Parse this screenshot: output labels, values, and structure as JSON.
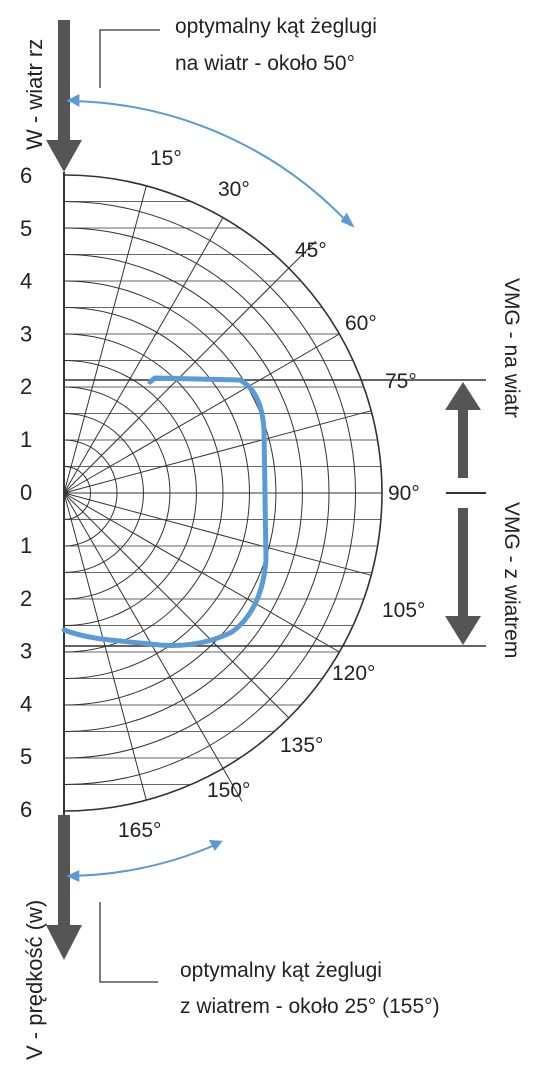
{
  "title_top": "W - wiatr rz",
  "title_bottom": "V - prędkość (w)",
  "axis_ticks_upper": [
    "6",
    "5",
    "4",
    "3",
    "2",
    "1",
    "0"
  ],
  "axis_ticks_lower": [
    "1",
    "2",
    "3",
    "4",
    "5",
    "6"
  ],
  "angle_labels": [
    "15°",
    "30°",
    "45°",
    "60°",
    "75°",
    "90°",
    "105°",
    "120°",
    "135°",
    "150°",
    "165°"
  ],
  "annotation_top": [
    "optymalny kąt żeglugi",
    "na wiatr - około 50°"
  ],
  "annotation_bottom": [
    "optymalny kąt żeglugi",
    "z wiatrem - około 25° (155°)"
  ],
  "vmg_upwind": "VMG - na wiatr",
  "vmg_downwind": "VMG - z wiatrem",
  "colors": {
    "accent": "#5b9bd5",
    "grid": "#333333",
    "arrow": "#555555",
    "text": "#222222"
  }
}
